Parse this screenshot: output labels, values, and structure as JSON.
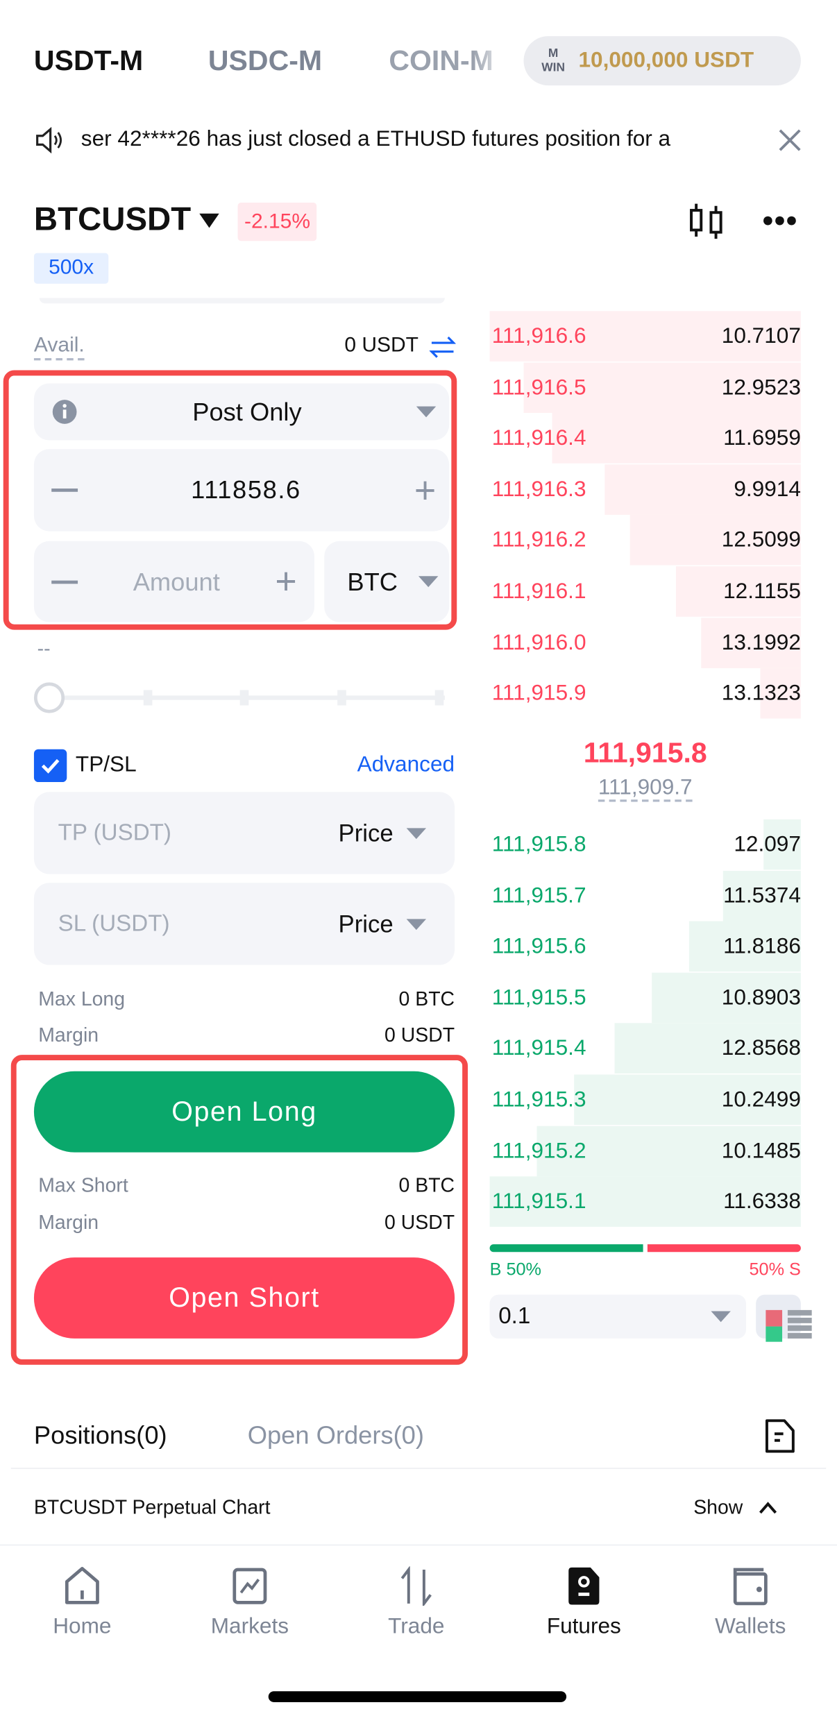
{
  "header": {
    "tabs": [
      "USDT-M",
      "USDC-M",
      "COIN-M"
    ],
    "active_tab": "USDT-M",
    "bonus_badge": "10,000,000 USDT",
    "bonus_logo_text": "M WIN"
  },
  "ticker": {
    "text": "ser 42****26 has just closed a ETHUSD futures position for a",
    "icon": "speaker-icon",
    "close_icon": "close-icon"
  },
  "symbol": {
    "name": "BTCUSDT",
    "change": "-2.15%",
    "leverage": "500x"
  },
  "order_form": {
    "avail_label": "Avail.",
    "avail_value": "0 USDT",
    "order_type": "Post Only",
    "price": "111858.6",
    "amount_placeholder": "Amount",
    "amount_unit": "BTC",
    "amount_display": "--",
    "slider_percent": 0,
    "tpsl_label": "TP/SL",
    "tpsl_checked": true,
    "advanced": "Advanced",
    "tp_placeholder": "TP (USDT)",
    "sl_placeholder": "SL (USDT)",
    "price_type": "Price",
    "max_long_label": "Max Long",
    "max_long": "0 BTC",
    "margin_label": "Margin",
    "margin_long": "0 USDT",
    "open_long": "Open Long",
    "max_short_label": "Max Short",
    "max_short": "0 BTC",
    "margin_short": "0 USDT",
    "open_short": "Open Short"
  },
  "orderbook": {
    "asks": [
      {
        "price": "111,916.6",
        "qty": "10.7107",
        "depth": 1.0
      },
      {
        "price": "111,916.5",
        "qty": "12.9523",
        "depth": 0.89
      },
      {
        "price": "111,916.4",
        "qty": "11.6959",
        "depth": 0.8
      },
      {
        "price": "111,916.3",
        "qty": "9.9914",
        "depth": 0.63
      },
      {
        "price": "111,916.2",
        "qty": "12.5099",
        "depth": 0.55
      },
      {
        "price": "111,916.1",
        "qty": "12.1155",
        "depth": 0.4
      },
      {
        "price": "111,916.0",
        "qty": "13.1992",
        "depth": 0.32
      },
      {
        "price": "111,915.9",
        "qty": "13.1323",
        "depth": 0.13
      }
    ],
    "last_price": "111,915.8",
    "mark_price": "111,909.7",
    "bids": [
      {
        "price": "111,915.8",
        "qty": "12.097",
        "depth": 0.12
      },
      {
        "price": "111,915.7",
        "qty": "11.5374",
        "depth": 0.25
      },
      {
        "price": "111,915.6",
        "qty": "11.8186",
        "depth": 0.36
      },
      {
        "price": "111,915.5",
        "qty": "10.8903",
        "depth": 0.48
      },
      {
        "price": "111,915.4",
        "qty": "12.8568",
        "depth": 0.6
      },
      {
        "price": "111,915.3",
        "qty": "10.2499",
        "depth": 0.73
      },
      {
        "price": "111,915.2",
        "qty": "10.1485",
        "depth": 0.85
      },
      {
        "price": "111,915.1",
        "qty": "11.6338",
        "depth": 1.0
      }
    ],
    "buy_ratio_label": "B 50%",
    "sell_ratio_label": "50% S",
    "buy_ratio": 50,
    "precision": "0.1"
  },
  "bottom": {
    "positions_tab": "Positions(0)",
    "orders_tab": "Open Orders(0)",
    "chart_label": "BTCUSDT Perpetual Chart",
    "show_label": "Show"
  },
  "nav": [
    {
      "label": "Home",
      "icon": "home-icon"
    },
    {
      "label": "Markets",
      "icon": "markets-icon"
    },
    {
      "label": "Trade",
      "icon": "trade-icon"
    },
    {
      "label": "Futures",
      "icon": "futures-icon",
      "active": true
    },
    {
      "label": "Wallets",
      "icon": "wallet-icon"
    }
  ],
  "colors": {
    "buy": "#0aa86b",
    "sell": "#ff445c",
    "accent": "#1560f5",
    "highlight_box": "#f44a4a",
    "gold": "#c09a4f"
  }
}
